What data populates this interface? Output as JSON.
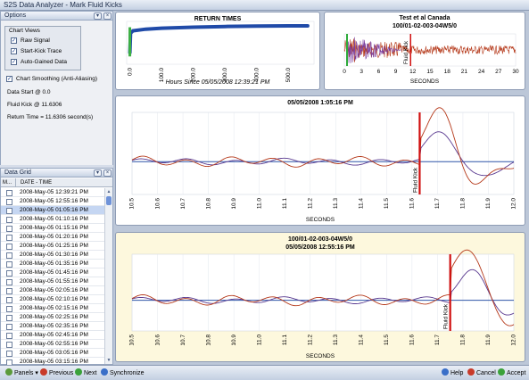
{
  "window": {
    "title": "S2S Data Analyzer - Mark Fluid Kicks"
  },
  "options": {
    "title": "Options",
    "chart_views_label": "Chart Views",
    "raw_signal": "Raw Signal",
    "start_kick_trace": "Start-Kick Trace",
    "auto_gained": "Auto-Gained Data",
    "smoothing": "Chart Smoothing (Anti-Aliasing)",
    "data_start": "Data Start @ 0.0",
    "fluid_kick": "Fluid Kick @ 11.6306",
    "return_time": "Return Time = 11.6306 second(s)"
  },
  "data_grid": {
    "title": "Data Grid",
    "col_mark": "M...",
    "col_datetime": "DATE - TIME",
    "rows": [
      "2008-May-05 12:39:21 PM",
      "2008-May-05 12:55:16 PM",
      "2008-May-05 01:05:16 PM",
      "2008-May-05 01:10:16 PM",
      "2008-May-05 01:15:16 PM",
      "2008-May-05 01:20:16 PM",
      "2008-May-05 01:25:16 PM",
      "2008-May-05 01:30:16 PM",
      "2008-May-05 01:35:16 PM",
      "2008-May-05 01:45:16 PM",
      "2008-May-05 01:55:16 PM",
      "2008-May-05 02:05:16 PM",
      "2008-May-05 02:10:16 PM",
      "2008-May-05 02:15:16 PM",
      "2008-May-05 02:25:16 PM",
      "2008-May-05 02:35:16 PM",
      "2008-May-05 02:45:16 PM",
      "2008-May-05 02:55:16 PM",
      "2008-May-05 03:05:16 PM",
      "2008-May-05 03:15:16 PM"
    ]
  },
  "toolbar": {
    "panels": "Panels",
    "previous": "Previous",
    "next": "Next",
    "synchronize": "Synchronize",
    "help": "Help",
    "cancel": "Cancel",
    "accept": "Accept"
  },
  "icons": [
    "panels-icon",
    "previous-icon",
    "next-icon",
    "synchronize-icon",
    "help-icon",
    "cancel-icon",
    "accept-icon",
    "pin-icon",
    "close-icon"
  ],
  "colors": {
    "accent": "#2a5db0",
    "kick_marker": "#d01010",
    "trace_red": "#b5391a",
    "trace_blue": "#2f55a8",
    "trace_purple": "#6a3a8a"
  },
  "chart_data": [
    {
      "type": "scatter",
      "title": "RETURN TIMES",
      "xlabel": "Hours Since 05/05/2008 12:39:21 PM",
      "ylabel": "",
      "xticks": [
        "0.0",
        "100.0",
        "200.0",
        "300.0",
        "400.0",
        "500.0"
      ],
      "xlim": [
        -10,
        580
      ],
      "points_approx": [
        [
          0,
          3
        ],
        [
          2,
          8
        ],
        [
          10,
          8.6
        ],
        [
          50,
          9.0
        ],
        [
          100,
          9.25
        ],
        [
          200,
          9.5
        ],
        [
          300,
          9.7
        ],
        [
          400,
          9.8
        ],
        [
          500,
          9.85
        ],
        [
          560,
          9.85
        ]
      ],
      "colors": [
        "#1f4aa8",
        "#3cb043"
      ]
    },
    {
      "type": "line",
      "title": "Test et al Canada",
      "subtitle": "100/01-02-003-04W5/0",
      "xlabel": "SECONDS",
      "xticks": [
        "0",
        "3",
        "6",
        "9",
        "12",
        "15",
        "18",
        "21",
        "24",
        "27",
        "30"
      ],
      "marker_label": "Fluid Kick",
      "marker_x": 11.6
    },
    {
      "type": "line",
      "title": "05/05/2008 1:05:16 PM",
      "xlabel": "SECONDS",
      "xticks": [
        "10.5",
        "10.6",
        "10.7",
        "10.8",
        "10.9",
        "11.0",
        "11.1",
        "11.2",
        "11.3",
        "11.4",
        "11.5",
        "11.6",
        "11.7",
        "11.8",
        "11.9",
        "12.0"
      ],
      "xlim": [
        10.5,
        12.0
      ],
      "marker_label": "Fluid Kick",
      "marker_x": 11.63
    },
    {
      "type": "line",
      "title": "100/01-02-003-04W5/0",
      "subtitle": "05/05/2008 12:55:16 PM",
      "xlabel": "SECONDS",
      "xticks": [
        "10.5",
        "10.6",
        "10.7",
        "10.8",
        "10.9",
        "11.0",
        "11.1",
        "11.2",
        "11.3",
        "11.4",
        "11.5",
        "11.6",
        "11.7",
        "11.8",
        "11.9",
        "12.0"
      ],
      "xlim": [
        10.5,
        12.0
      ],
      "marker_label": "Fluid Kick",
      "marker_x": 11.75
    }
  ]
}
